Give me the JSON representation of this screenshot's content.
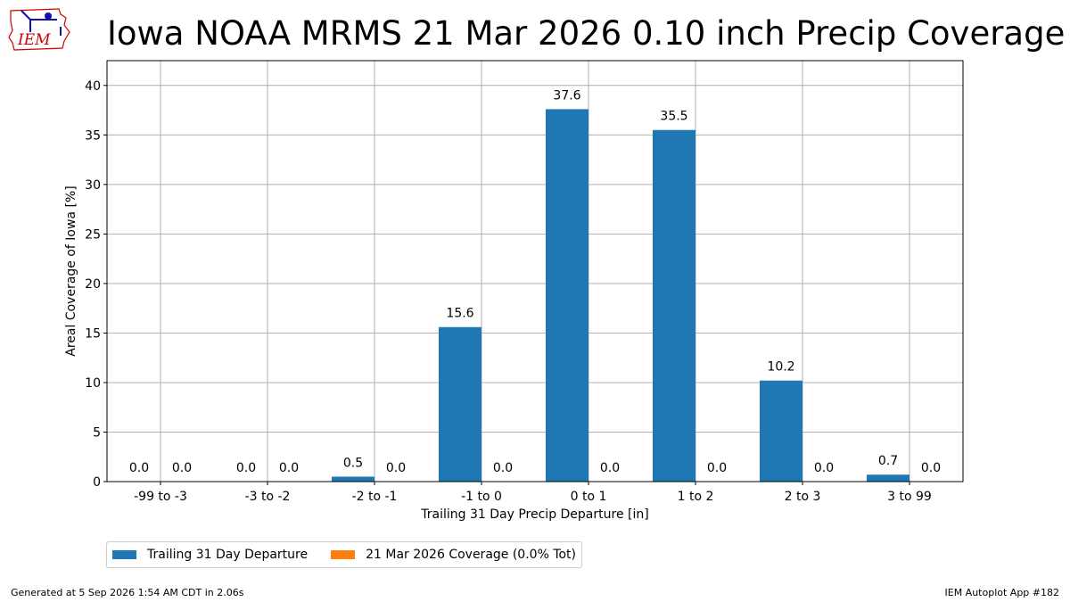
{
  "title": "Iowa NOAA MRMS 21 Mar 2026 0.10 inch Precip Coverage",
  "logo_text": "IEM",
  "footer": {
    "left": "Generated at 5 Sep 2026 1:54 AM CDT in 2.06s",
    "right": "IEM Autoplot App #182"
  },
  "colors": {
    "series1": "#1f77b4",
    "series2": "#ff7f0e",
    "grid": "#b0b0b0",
    "logo": "#cc0000",
    "logo_icon": "#1010aa"
  },
  "chart_data": {
    "type": "bar",
    "xlabel": "Trailing 31 Day Precip Departure [in]",
    "ylabel": "Areal Coverage of Iowa [%]",
    "ylim": [
      0,
      42.5
    ],
    "yticks": [
      0,
      5,
      10,
      15,
      20,
      25,
      30,
      35,
      40
    ],
    "grid": true,
    "legend_position": "bottom-left, below axes",
    "categories": [
      "-99 to -3",
      "-3 to -2",
      "-2 to -1",
      "-1 to 0",
      "0 to 1",
      "1 to 2",
      "2 to 3",
      "3 to 99"
    ],
    "series": [
      {
        "name": "Trailing 31 Day Departure",
        "color": "#1f77b4",
        "values": [
          0.0,
          0.0,
          0.5,
          15.6,
          37.6,
          35.5,
          10.2,
          0.7
        ]
      },
      {
        "name": "21 Mar 2026 Coverage (0.0% Tot)",
        "color": "#ff7f0e",
        "values": [
          0.0,
          0.0,
          0.0,
          0.0,
          0.0,
          0.0,
          0.0,
          0.0
        ]
      }
    ]
  }
}
